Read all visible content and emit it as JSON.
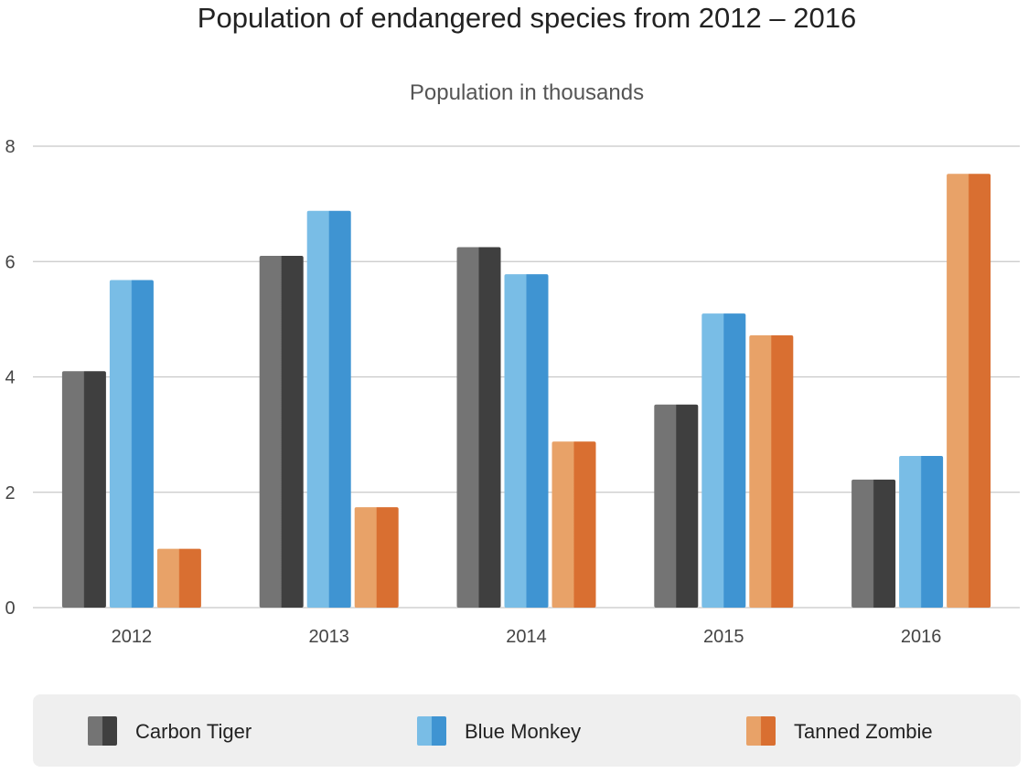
{
  "chart_data": {
    "type": "bar",
    "title": "Population of endangered species from 2012 – 2016",
    "subtitle": "Population in thousands",
    "categories": [
      "2012",
      "2013",
      "2014",
      "2015",
      "2016"
    ],
    "y_ticks": [
      "0",
      "2",
      "4",
      "6",
      "8"
    ],
    "ylim": [
      0,
      8
    ],
    "grid": true,
    "legend_position": "bottom",
    "series": [
      {
        "name": "Carbon Tiger",
        "values": [
          4.1,
          6.1,
          6.25,
          3.52,
          2.22
        ],
        "color_light": "#747474",
        "color_dark": "#3f3f3f"
      },
      {
        "name": "Blue Monkey",
        "values": [
          5.68,
          6.88,
          5.78,
          5.1,
          2.63
        ],
        "color_light": "#79bde6",
        "color_dark": "#3f94d2"
      },
      {
        "name": "Tanned Zombie",
        "values": [
          1.02,
          1.74,
          2.88,
          4.72,
          7.52
        ],
        "color_light": "#e8a268",
        "color_dark": "#d96f31"
      }
    ]
  }
}
